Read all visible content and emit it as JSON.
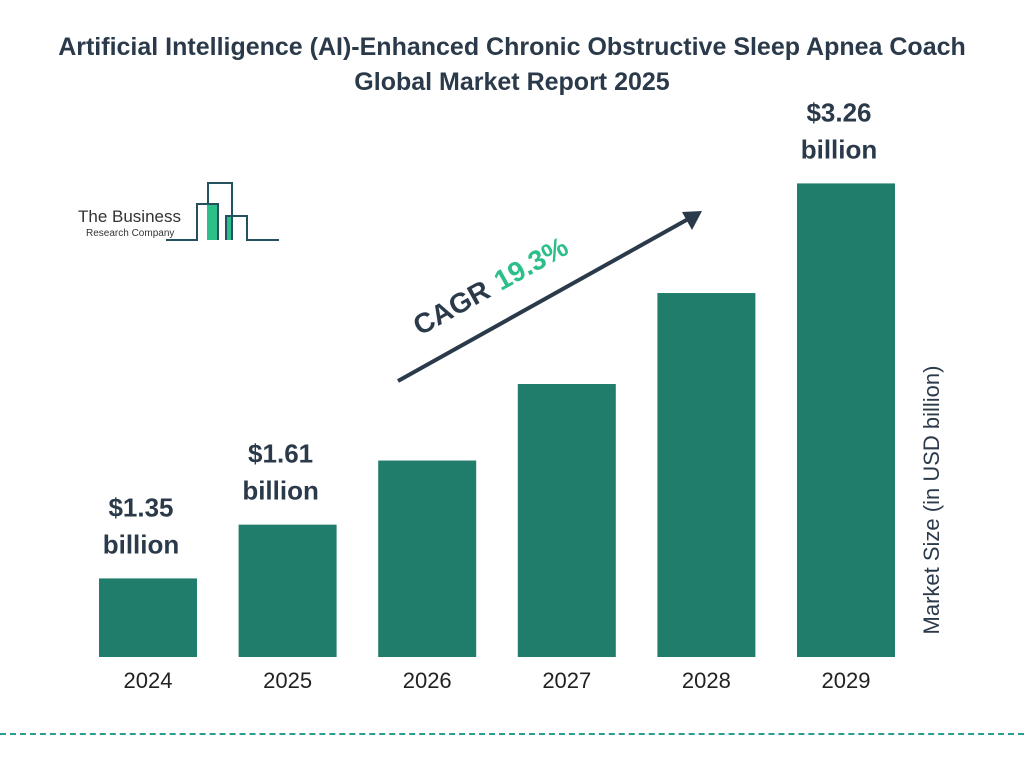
{
  "chart_data": {
    "type": "bar",
    "title": "Artificial Intelligence (AI)-Enhanced Chronic Obstructive Sleep Apnea Coach Global Market Report 2025",
    "ylabel": "Market Size (in USD billion)",
    "categories": [
      "2024",
      "2025",
      "2026",
      "2027",
      "2028",
      "2029"
    ],
    "values": [
      1.35,
      1.61,
      1.92,
      2.29,
      2.73,
      3.26
    ],
    "data_labels": [
      "$1.35 billion",
      "$1.61 billion",
      "",
      "",
      "",
      "$3.26 billion"
    ],
    "label_lines": [
      [
        "$1.35",
        "billion"
      ],
      [
        "$1.61",
        "billion"
      ],
      null,
      null,
      null,
      [
        "$3.26",
        "billion"
      ]
    ],
    "ylim": [
      0.97,
      3.26
    ],
    "grid": false,
    "annotation": {
      "prefix": "CAGR",
      "value": "19.3%"
    },
    "colors": {
      "bar": "#217d6b",
      "text": "#2b3a4a",
      "cagr": "#2dbf8a"
    }
  },
  "logo": {
    "line1": "The Business",
    "line2": "Research Company"
  }
}
